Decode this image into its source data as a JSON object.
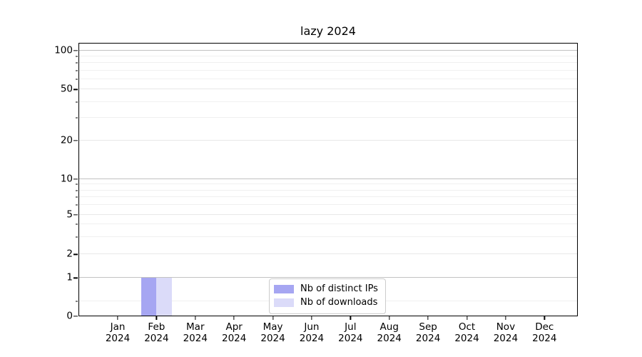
{
  "chart_data": {
    "type": "bar",
    "title": "lazy 2024",
    "categories": [
      "Jan 2024",
      "Feb 2024",
      "Mar 2024",
      "Apr 2024",
      "May 2024",
      "Jun 2024",
      "Jul 2024",
      "Aug 2024",
      "Sep 2024",
      "Oct 2024",
      "Nov 2024",
      "Dec 2024"
    ],
    "series": [
      {
        "name": "Nb of distinct IPs",
        "color": "#a6a6f2",
        "values": [
          0,
          1,
          0,
          0,
          0,
          0,
          0,
          0,
          0,
          0,
          0,
          0
        ]
      },
      {
        "name": "Nb of downloads",
        "color": "#dbdbf9",
        "values": [
          0,
          1,
          0,
          0,
          0,
          0,
          0,
          0,
          0,
          0,
          0,
          0
        ]
      }
    ],
    "xlabel": "",
    "ylabel": "",
    "y_scale": "symlog (linear 0-1, logarithmic above 1)",
    "y_ticks": [
      0,
      1,
      2,
      5,
      10,
      20,
      50,
      100
    ],
    "ylim": [
      0,
      115
    ],
    "grid": true,
    "legend_position": "inside bottom-center"
  }
}
